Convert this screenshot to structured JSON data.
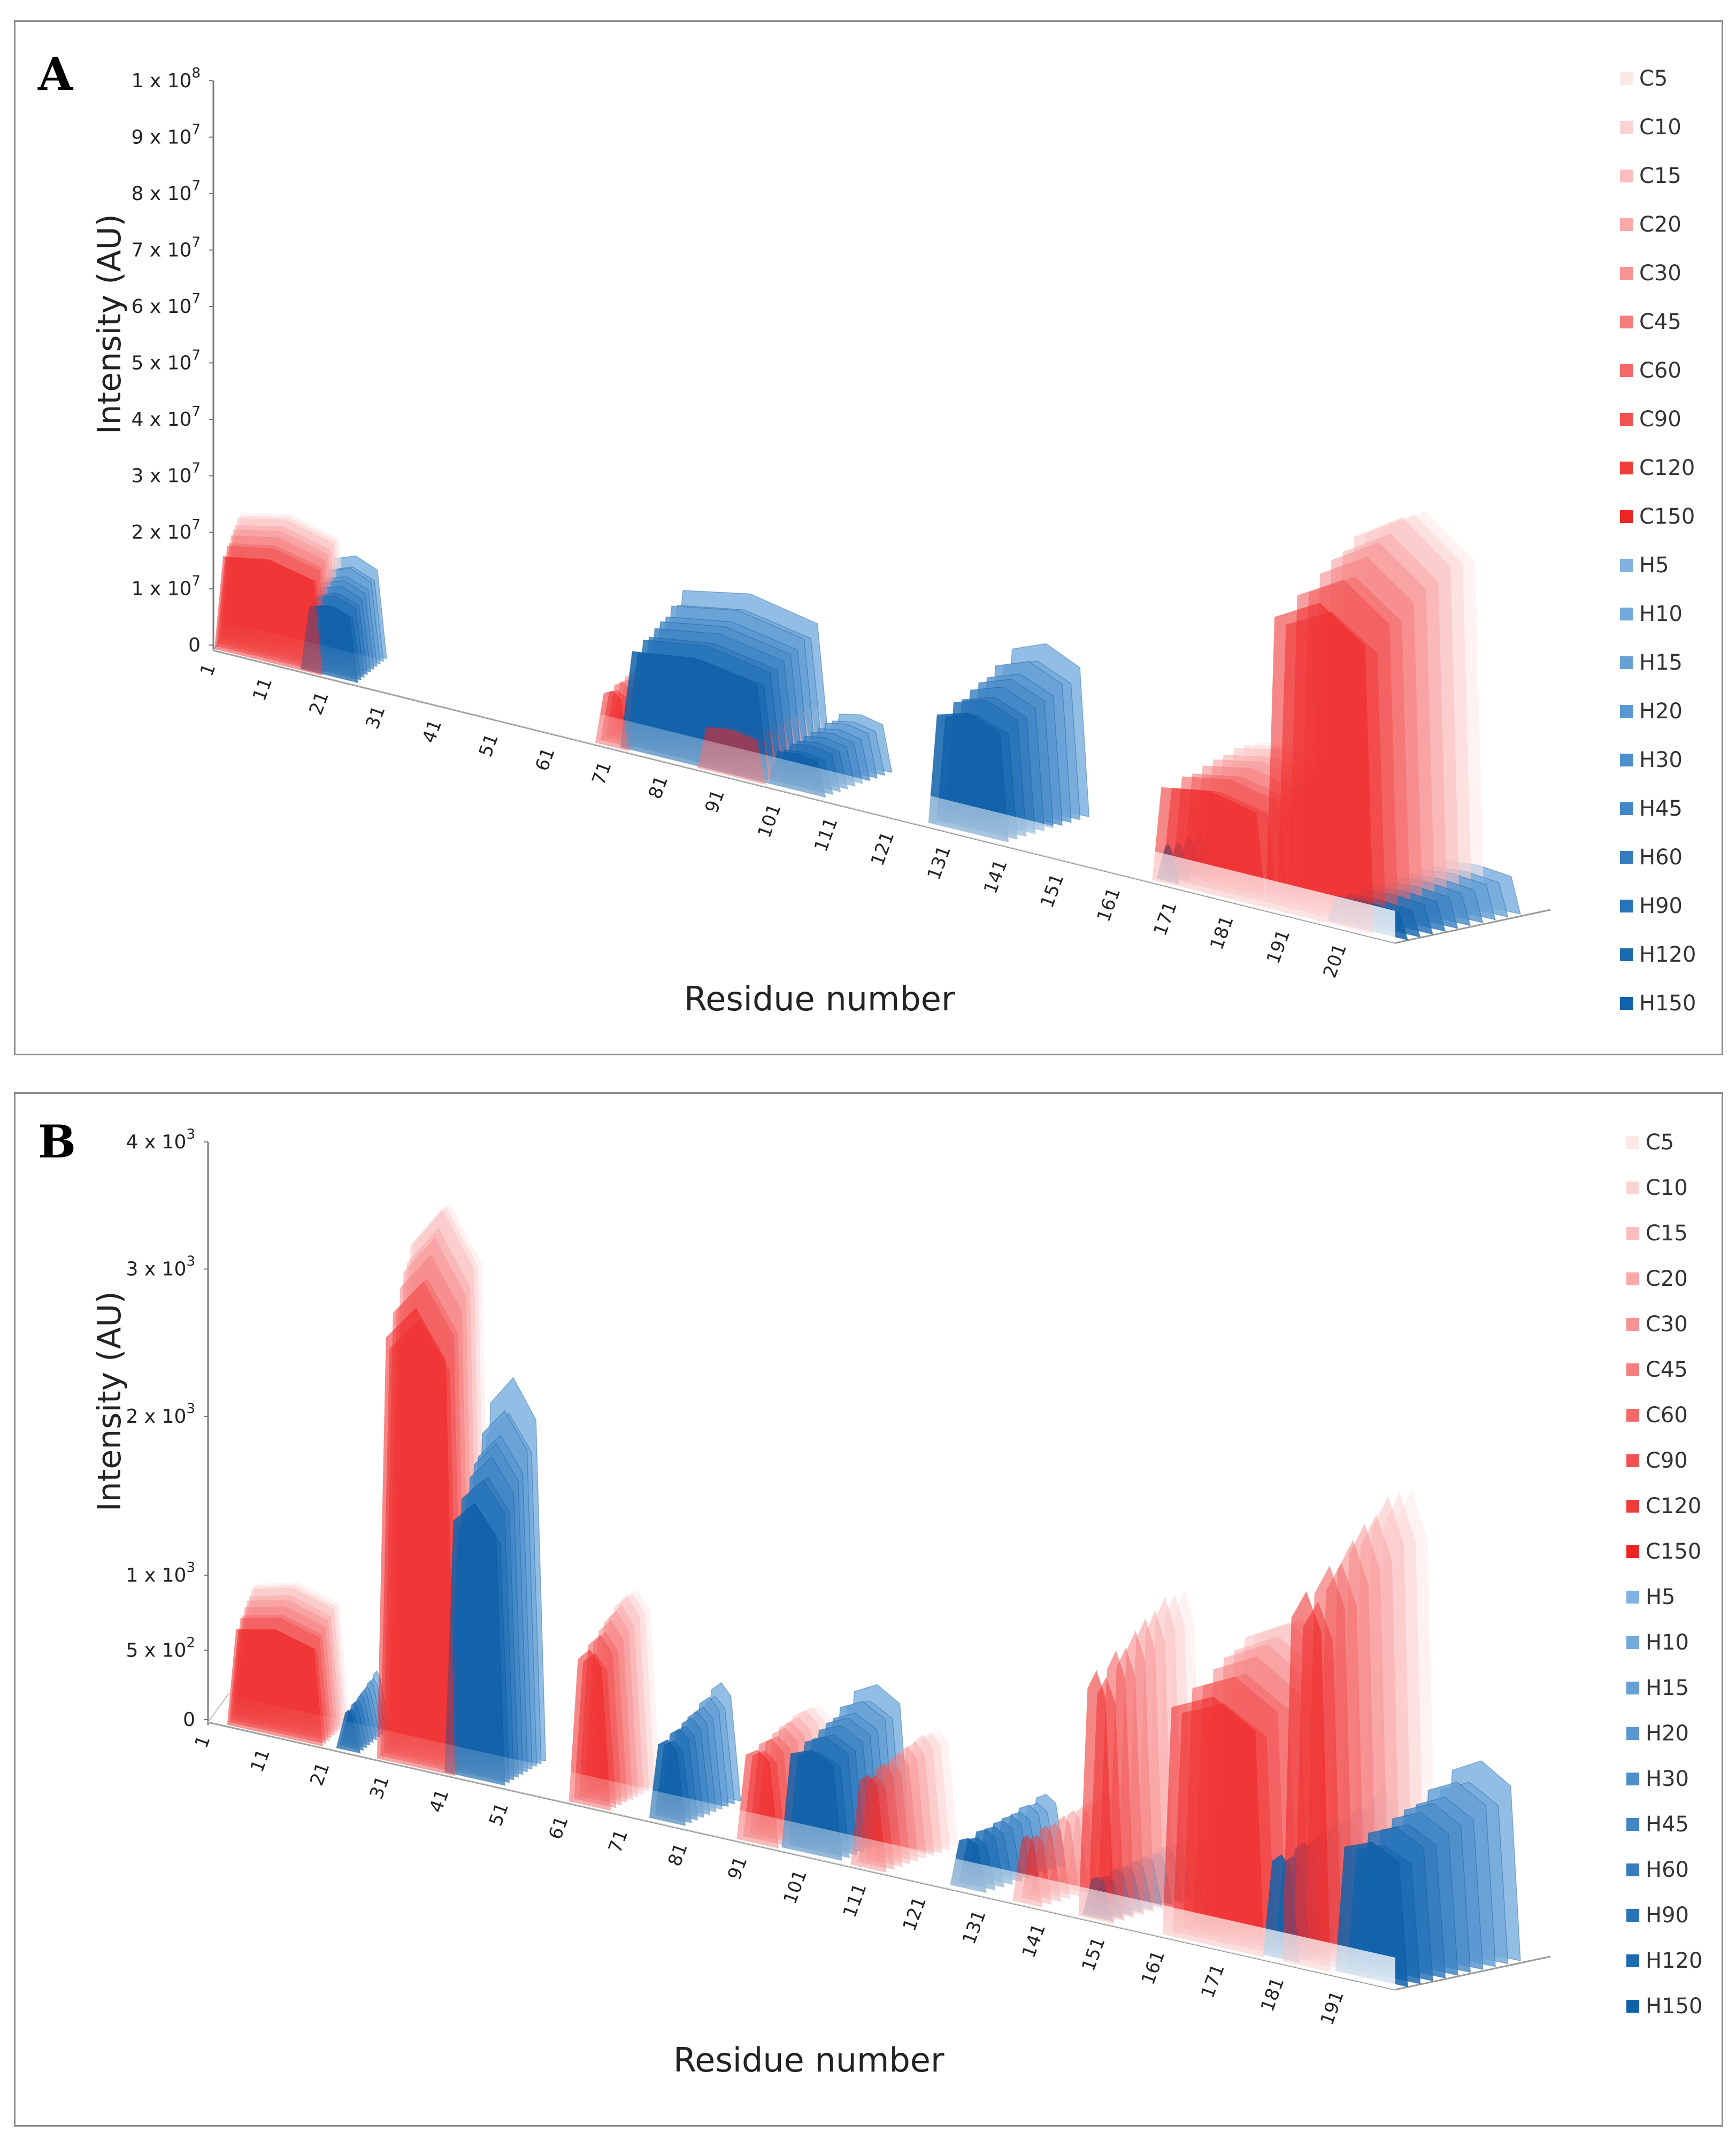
{
  "chart_data": [
    {
      "type": "area",
      "panel_label": "A",
      "title": "",
      "xlabel": "Residue number",
      "ylabel": "Intensity (AU)",
      "ylim": [
        0,
        100000000
      ],
      "y_ticks": [
        {
          "value": 0,
          "mantissa": "0",
          "exponent": ""
        },
        {
          "value": 10000000,
          "mantissa": "1 x 10",
          "exponent": "7"
        },
        {
          "value": 20000000,
          "mantissa": "2 x 10",
          "exponent": "7"
        },
        {
          "value": 30000000,
          "mantissa": "3 x 10",
          "exponent": "7"
        },
        {
          "value": 40000000,
          "mantissa": "4 x 10",
          "exponent": "7"
        },
        {
          "value": 50000000,
          "mantissa": "5 x 10",
          "exponent": "7"
        },
        {
          "value": 60000000,
          "mantissa": "6 x 10",
          "exponent": "7"
        },
        {
          "value": 70000000,
          "mantissa": "7 x 10",
          "exponent": "7"
        },
        {
          "value": 80000000,
          "mantissa": "8 x 10",
          "exponent": "7"
        },
        {
          "value": 90000000,
          "mantissa": "9 x 10",
          "exponent": "7"
        },
        {
          "value": 100000000,
          "mantissa": "1 x 10",
          "exponent": "8"
        }
      ],
      "x_ticks": [
        "1",
        "11",
        "21",
        "31",
        "41",
        "51",
        "61",
        "71",
        "81",
        "91",
        "101",
        "111",
        "121",
        "131",
        "141",
        "151",
        "161",
        "171",
        "181",
        "191",
        "201"
      ],
      "xlim": [
        1,
        210
      ],
      "legend": [
        "C5",
        "C10",
        "C15",
        "C20",
        "C30",
        "C45",
        "C60",
        "C90",
        "C120",
        "C150",
        "H5",
        "H10",
        "H15",
        "H20",
        "H30",
        "H45",
        "H60",
        "H90",
        "H120",
        "H150"
      ],
      "colors": {
        "C": [
          "#fde8e8",
          "#fcd3d3",
          "#fbbdbd",
          "#faa8a8",
          "#f89393",
          "#f67e7e",
          "#f46868",
          "#f25252",
          "#f03b3b",
          "#ee2525"
        ],
        "H": [
          "#7fb2e0",
          "#73aadb",
          "#66a1d6",
          "#5a98d1",
          "#4d8fcb",
          "#4186c5",
          "#357dbf",
          "#2874b8",
          "#1c6bb1",
          "#1062aa"
        ]
      },
      "series_groups": {
        "C": [
          {
            "range": [
              1,
              20
            ],
            "peak": 22000000
          },
          {
            "range": [
              68,
              74
            ],
            "peak": 12000000
          },
          {
            "range": [
              86,
              98
            ],
            "peak": 10000000
          },
          {
            "range": [
              166,
              186
            ],
            "peak": 22000000
          },
          {
            "range": [
              186,
              205
            ],
            "peak": 68000000
          }
        ],
        "H": [
          {
            "range": [
              16,
              26
            ],
            "peak": 17000000
          },
          {
            "range": [
              72,
              98
            ],
            "peak": 26000000
          },
          {
            "range": [
              98,
              108
            ],
            "peak": 9000000
          },
          {
            "range": [
              126,
              140
            ],
            "peak": 29000000
          },
          {
            "range": [
              166,
              170
            ],
            "peak": 9000000
          },
          {
            "range": [
              196,
              210
            ],
            "peak": 7000000
          }
        ]
      }
    },
    {
      "type": "area",
      "panel_label": "B",
      "title": "",
      "xlabel": "Residue number",
      "ylabel": "Intensity (AU)",
      "ylim": [
        0,
        4000
      ],
      "y_ticks": [
        {
          "value": 0,
          "mantissa": "0",
          "exponent": ""
        },
        {
          "value": 500,
          "mantissa": "5 x 10",
          "exponent": "2"
        },
        {
          "value": 1000,
          "mantissa": "1 x 10",
          "exponent": "3"
        },
        {
          "value": 2000,
          "mantissa": "2 x 10",
          "exponent": "3"
        },
        {
          "value": 3000,
          "mantissa": "3 x 10",
          "exponent": "3"
        },
        {
          "value": 4000,
          "mantissa": "4 x 10",
          "exponent": "3"
        }
      ],
      "x_ticks": [
        "1",
        "11",
        "21",
        "31",
        "41",
        "51",
        "61",
        "71",
        "81",
        "91",
        "101",
        "111",
        "121",
        "131",
        "141",
        "151",
        "161",
        "171",
        "181",
        "191"
      ],
      "xlim": [
        1,
        200
      ],
      "legend": [
        "C5",
        "C10",
        "C15",
        "C20",
        "C30",
        "C45",
        "C60",
        "C90",
        "C120",
        "C150",
        "H5",
        "H10",
        "H15",
        "H20",
        "H30",
        "H45",
        "H60",
        "H90",
        "H120",
        "H150"
      ],
      "colors": {
        "C": [
          "#fde8e8",
          "#fcd3d3",
          "#fbbdbd",
          "#faa8a8",
          "#f89393",
          "#f67e7e",
          "#f46868",
          "#f25252",
          "#f03b3b",
          "#ee2525"
        ],
        "H": [
          "#7fb2e0",
          "#73aadb",
          "#66a1d6",
          "#5a98d1",
          "#4d8fcb",
          "#4186c5",
          "#357dbf",
          "#2874b8",
          "#1c6bb1",
          "#1062aa"
        ]
      },
      "series_groups": {
        "C": [
          {
            "range": [
              4,
              20
            ],
            "peak": 900
          },
          {
            "range": [
              29,
              42
            ],
            "peak": 3700
          },
          {
            "range": [
              61,
              68
            ],
            "peak": 1300
          },
          {
            "range": [
              89,
              96
            ],
            "peak": 800
          },
          {
            "range": [
              108,
              114
            ],
            "peak": 800
          },
          {
            "range": [
              135,
              140
            ],
            "peak": 600
          },
          {
            "range": [
              146,
              152
            ],
            "peak": 2000
          },
          {
            "range": [
              160,
              177
            ],
            "peak": 2000
          },
          {
            "range": [
              180,
              188
            ],
            "peak": 3000
          }
        ],
        "H": [
          {
            "range": [
              22,
              26
            ],
            "peak": 400
          },
          {
            "range": [
              40,
              50
            ],
            "peak": 2500
          },
          {
            "range": [
              74,
              80
            ],
            "peak": 800
          },
          {
            "range": [
              96,
              106
            ],
            "peak": 1000
          },
          {
            "range": [
              124,
              130
            ],
            "peak": 500
          },
          {
            "range": [
              146,
              151
            ],
            "peak": 400
          },
          {
            "range": [
              176,
              182
            ],
            "peak": 1000
          },
          {
            "range": [
              188,
              200
            ],
            "peak": 1300
          }
        ]
      }
    }
  ]
}
